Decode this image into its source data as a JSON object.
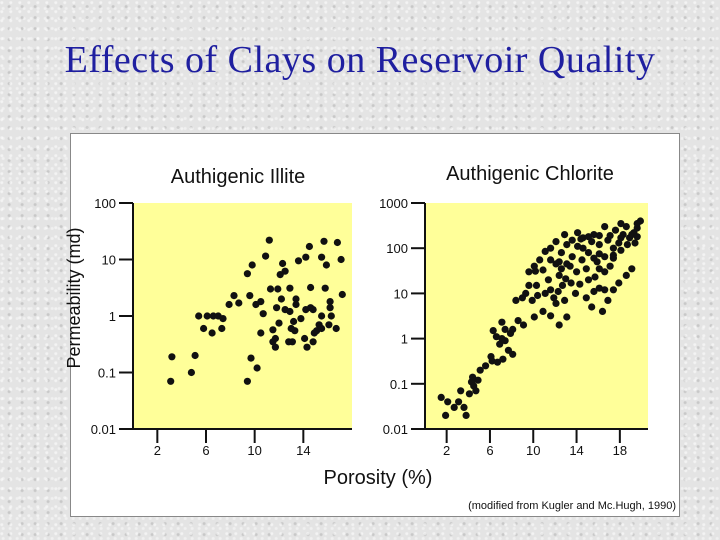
{
  "slide": {
    "title": "Effects of Clays on Reservoir Quality",
    "y_axis_label": "Permeability (md)",
    "x_axis_label": "Porosity (%)",
    "source_note": "(modified from Kugler and Mc.Hugh, 1990)"
  },
  "colors": {
    "title": "#1f1fa0",
    "plot_background": "#ffff99",
    "points": "#111111"
  },
  "chart_data": [
    {
      "type": "scatter",
      "title": "Authigenic Illite",
      "xlabel": "Porosity (%)",
      "ylabel": "Permeability (md)",
      "yscale": "log",
      "xlim": [
        0,
        18
      ],
      "ylim": [
        0.01,
        100
      ],
      "xticks": [
        2,
        6,
        10,
        14
      ],
      "xtick_labels": [
        "2",
        "6",
        "10",
        "14"
      ],
      "yticks": [
        0.01,
        0.1,
        1,
        10,
        100
      ],
      "ytick_labels": [
        "0.01",
        "0.1",
        "1",
        "10",
        "100"
      ],
      "points": [
        [
          5.4,
          1
        ],
        [
          5.8,
          0.6
        ],
        [
          6.1,
          1
        ],
        [
          6.6,
          1
        ],
        [
          7,
          1
        ],
        [
          6.5,
          0.5
        ],
        [
          7.4,
          0.9
        ],
        [
          7.3,
          0.6
        ],
        [
          3.2,
          0.19
        ],
        [
          3.1,
          0.07
        ],
        [
          4.8,
          0.1
        ],
        [
          5.1,
          0.2
        ],
        [
          9.4,
          0.07
        ],
        [
          10.2,
          0.12
        ],
        [
          9.4,
          5.6
        ],
        [
          9.8,
          8
        ],
        [
          11.3,
          3
        ],
        [
          11.9,
          3
        ],
        [
          10.5,
          1.8
        ],
        [
          11.8,
          1.4
        ],
        [
          12.5,
          1.3
        ],
        [
          10.1,
          1.6
        ],
        [
          12.2,
          2
        ],
        [
          10.7,
          1.1
        ],
        [
          12.9,
          1.2
        ],
        [
          13.2,
          0.8
        ],
        [
          13.8,
          0.9
        ],
        [
          14.8,
          1.3
        ],
        [
          15.3,
          0.7
        ],
        [
          15.5,
          1
        ],
        [
          16.3,
          1
        ],
        [
          16.2,
          1.8
        ],
        [
          17.2,
          2.4
        ],
        [
          15.8,
          3.1
        ],
        [
          14.6,
          3.2
        ],
        [
          15.9,
          8
        ],
        [
          15.5,
          11
        ],
        [
          16.8,
          20
        ],
        [
          17.1,
          10
        ],
        [
          15.7,
          21
        ],
        [
          14.2,
          11
        ],
        [
          14.5,
          17
        ],
        [
          11.2,
          22
        ],
        [
          12.1,
          5.4
        ],
        [
          13.4,
          2
        ],
        [
          14.2,
          1.3
        ],
        [
          13.3,
          0.55
        ],
        [
          13.1,
          0.35
        ],
        [
          14.3,
          0.28
        ],
        [
          14.8,
          0.35
        ],
        [
          16.1,
          0.7
        ],
        [
          16.7,
          0.6
        ],
        [
          15.1,
          0.55
        ],
        [
          12.8,
          0.35
        ],
        [
          11.7,
          0.28
        ],
        [
          11.5,
          0.57
        ],
        [
          12,
          0.75
        ],
        [
          10.5,
          0.5
        ],
        [
          11.5,
          0.35
        ],
        [
          12.5,
          6.2
        ],
        [
          13.6,
          9.5
        ],
        [
          12.3,
          8.5
        ],
        [
          10.9,
          11.5
        ],
        [
          8.7,
          1.7
        ],
        [
          9.6,
          2.3
        ],
        [
          12.9,
          3.1
        ],
        [
          11.7,
          0.4
        ],
        [
          13,
          0.6
        ],
        [
          15.5,
          0.6
        ],
        [
          13.4,
          1.6
        ],
        [
          14.6,
          1.4
        ],
        [
          16.2,
          1.4
        ],
        [
          14.9,
          0.5
        ],
        [
          14.1,
          0.4
        ],
        [
          9.7,
          0.18
        ],
        [
          7.9,
          1.6
        ],
        [
          8.3,
          2.3
        ]
      ]
    },
    {
      "type": "scatter",
      "title": "Authigenic Chlorite",
      "xlabel": "Porosity (%)",
      "ylabel": "Permeability (md)",
      "yscale": "log",
      "xlim": [
        0,
        20.6
      ],
      "ylim": [
        0.01,
        1000
      ],
      "xticks": [
        2,
        6,
        10,
        14,
        18
      ],
      "xtick_labels": [
        "2",
        "6",
        "10",
        "14",
        "18"
      ],
      "yticks": [
        0.01,
        0.1,
        1,
        10,
        100,
        1000
      ],
      "ytick_labels": [
        "0.01",
        "0.1",
        "1",
        "10",
        "100",
        "1000"
      ],
      "points": [
        [
          1.5,
          0.05
        ],
        [
          1.9,
          0.02
        ],
        [
          2.1,
          0.04
        ],
        [
          2.7,
          0.03
        ],
        [
          3.1,
          0.04
        ],
        [
          3.3,
          0.07
        ],
        [
          3.6,
          0.03
        ],
        [
          3.8,
          0.02
        ],
        [
          4.1,
          0.06
        ],
        [
          4.3,
          0.11
        ],
        [
          4.5,
          0.09
        ],
        [
          4.7,
          0.07
        ],
        [
          4.9,
          0.12
        ],
        [
          4.4,
          0.14
        ],
        [
          5.1,
          0.2
        ],
        [
          5.6,
          0.25
        ],
        [
          6.2,
          0.32
        ],
        [
          6.7,
          0.3
        ],
        [
          7.2,
          0.35
        ],
        [
          7.7,
          0.55
        ],
        [
          8.1,
          0.45
        ],
        [
          7.4,
          0.9
        ],
        [
          7.9,
          1.3
        ],
        [
          6.3,
          1.5
        ],
        [
          6.6,
          1.1
        ],
        [
          7.1,
          2.3
        ],
        [
          7.4,
          1.6
        ],
        [
          6.9,
          0.75
        ],
        [
          8.4,
          7
        ],
        [
          9,
          8
        ],
        [
          9.3,
          10
        ],
        [
          9.6,
          30
        ],
        [
          10.2,
          31
        ],
        [
          10.3,
          15
        ],
        [
          10.9,
          33
        ],
        [
          11.4,
          20
        ],
        [
          11.6,
          12
        ],
        [
          11.9,
          8
        ],
        [
          12.1,
          6
        ],
        [
          12.4,
          25
        ],
        [
          12.7,
          15
        ],
        [
          13,
          21
        ],
        [
          13.5,
          17
        ],
        [
          14,
          30
        ],
        [
          14.5,
          55
        ],
        [
          15.1,
          20
        ],
        [
          15.7,
          23
        ],
        [
          16.1,
          35
        ],
        [
          16.6,
          30
        ],
        [
          17.1,
          40
        ],
        [
          17.4,
          100
        ],
        [
          17.9,
          130
        ],
        [
          18.3,
          200
        ],
        [
          18.9,
          170
        ],
        [
          19.3,
          220
        ],
        [
          19.6,
          280
        ],
        [
          19.4,
          130
        ],
        [
          18.7,
          120
        ],
        [
          18.1,
          90
        ],
        [
          17.4,
          70
        ],
        [
          16.6,
          65
        ],
        [
          16.1,
          75
        ],
        [
          15.6,
          60
        ],
        [
          15.1,
          80
        ],
        [
          14.6,
          100
        ],
        [
          14.1,
          110
        ],
        [
          13.6,
          65
        ],
        [
          13.1,
          45
        ],
        [
          12.6,
          35
        ],
        [
          12.1,
          45
        ],
        [
          11.6,
          55
        ],
        [
          11.1,
          85
        ],
        [
          10.6,
          55
        ],
        [
          10.1,
          40
        ],
        [
          9.6,
          15
        ],
        [
          9.9,
          7
        ],
        [
          10.4,
          9
        ],
        [
          11.1,
          10
        ],
        [
          12.3,
          11
        ],
        [
          12.9,
          7
        ],
        [
          13.9,
          10
        ],
        [
          14.3,
          16
        ],
        [
          15.6,
          11
        ],
        [
          16.1,
          13
        ],
        [
          16.6,
          12
        ],
        [
          12.6,
          80
        ],
        [
          13.1,
          120
        ],
        [
          13.6,
          150
        ],
        [
          14.6,
          170
        ],
        [
          15.6,
          200
        ],
        [
          16.6,
          300
        ],
        [
          17.6,
          250
        ],
        [
          18.6,
          300
        ],
        [
          19.9,
          400
        ],
        [
          19.6,
          350
        ],
        [
          18.1,
          350
        ],
        [
          16.9,
          150
        ],
        [
          16.1,
          120
        ],
        [
          15.4,
          140
        ],
        [
          14.4,
          160
        ],
        [
          12.1,
          140
        ],
        [
          11.6,
          100
        ],
        [
          12.9,
          200
        ],
        [
          14.1,
          220
        ],
        [
          15.1,
          180
        ],
        [
          16.1,
          190
        ],
        [
          17.1,
          190
        ],
        [
          18.1,
          170
        ],
        [
          19.1,
          200
        ],
        [
          19.6,
          180
        ],
        [
          12.4,
          50
        ],
        [
          13.4,
          40
        ],
        [
          14.9,
          35
        ],
        [
          15.9,
          50
        ],
        [
          17.4,
          60
        ],
        [
          14.9,
          8
        ],
        [
          15.4,
          5
        ],
        [
          13.1,
          3
        ],
        [
          12.4,
          2
        ],
        [
          11.6,
          3.2
        ],
        [
          10.9,
          4
        ],
        [
          10.1,
          3
        ],
        [
          9.1,
          2
        ],
        [
          16.4,
          4
        ],
        [
          16.9,
          7
        ],
        [
          17.4,
          12
        ],
        [
          17.9,
          17
        ],
        [
          18.6,
          25
        ],
        [
          19.1,
          35
        ],
        [
          8.6,
          2.5
        ],
        [
          8.1,
          1.6
        ],
        [
          7.1,
          1
        ],
        [
          6.1,
          0.4
        ]
      ]
    }
  ]
}
